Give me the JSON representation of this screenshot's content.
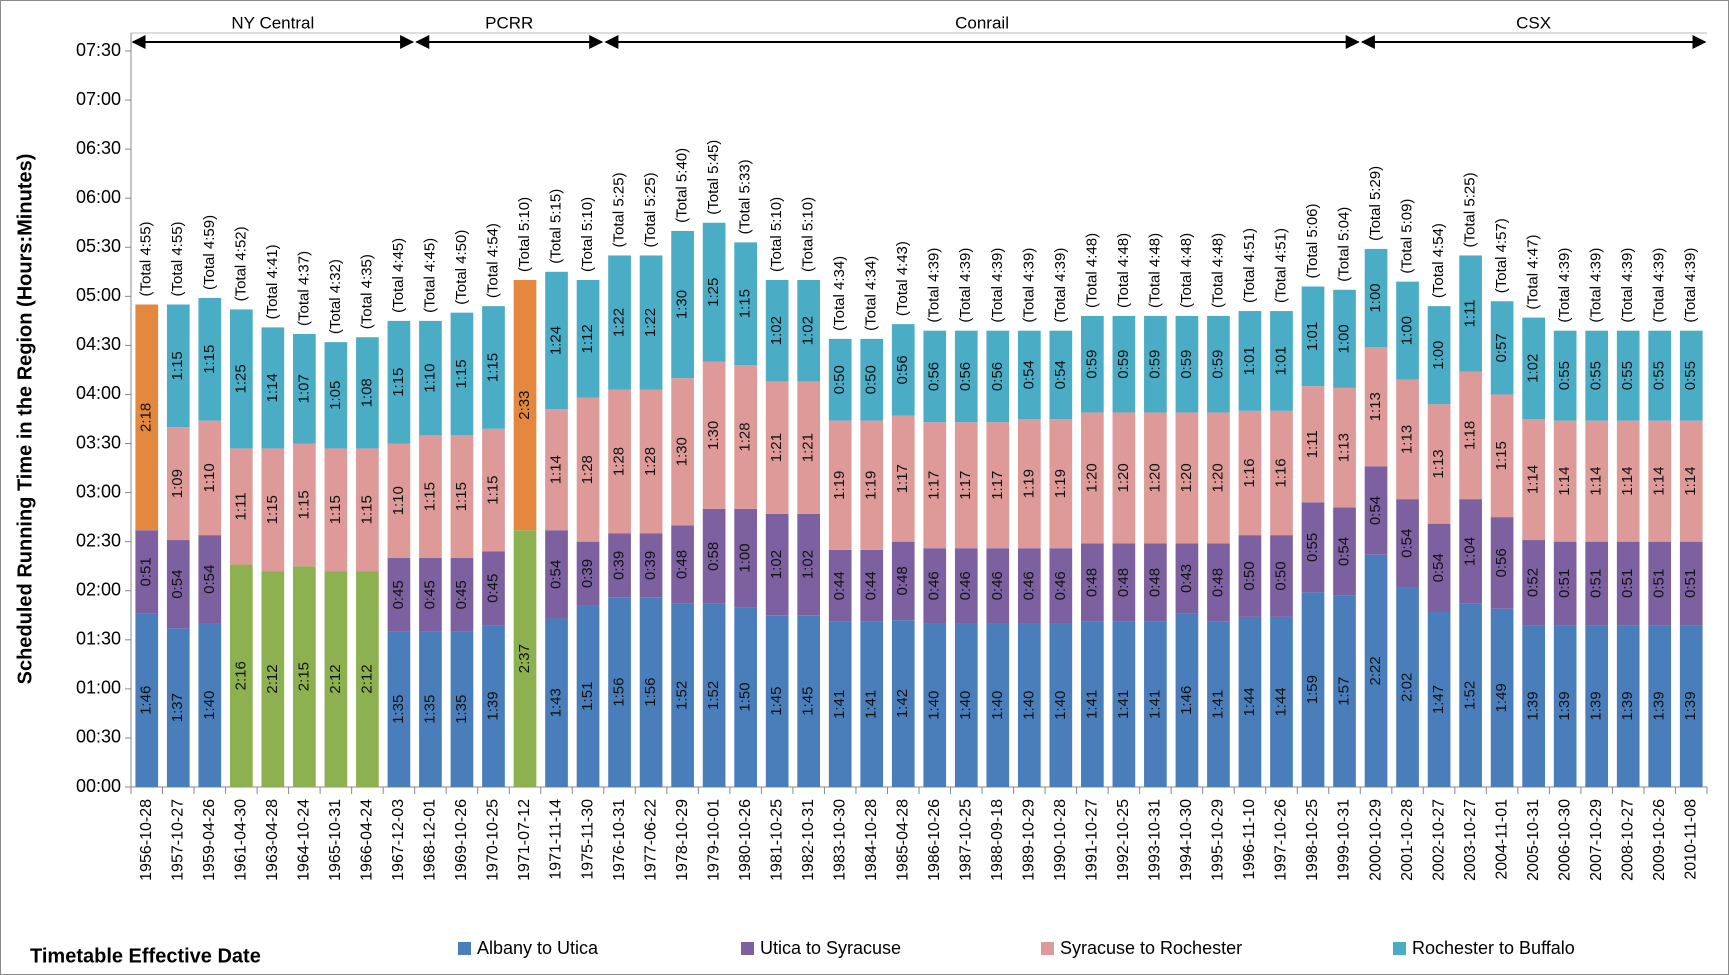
{
  "chart_data": {
    "type": "stacked_bar",
    "y_axis_title": "Scheduled Running Time in the Region (Hours:Minutes)",
    "x_axis_title": "Timetable Effective Date",
    "eras": [
      "NY Central",
      "PCRR",
      "Conrail",
      "CSX"
    ],
    "categories": [
      "1956-10-28",
      "1957-10-27",
      "1959-04-26",
      "1961-04-30",
      "1963-04-28",
      "1964-10-24",
      "1965-10-31",
      "1966-04-24",
      "1967-12-03",
      "1968-12-01",
      "1969-10-26",
      "1970-10-25",
      "1971-07-12",
      "1971-11-14",
      "1975-11-30",
      "1976-10-31",
      "1977-06-22",
      "1978-10-29",
      "1979-10-01",
      "1980-10-26",
      "1981-10-25",
      "1982-10-31",
      "1983-10-30",
      "1984-10-28",
      "1985-04-28",
      "1986-10-26",
      "1987-10-25",
      "1988-09-18",
      "1989-10-29",
      "1990-10-28",
      "1991-10-27",
      "1992-10-25",
      "1993-10-31",
      "1994-10-30",
      "1995-10-29",
      "1996-11-10",
      "1997-10-26",
      "1998-10-25",
      "1999-10-31",
      "2000-10-29",
      "2001-10-28",
      "2002-10-27",
      "2003-10-27",
      "2004-11-01",
      "2005-10-31",
      "2006-10-30",
      "2007-10-29",
      "2008-10-27",
      "2009-10-26",
      "2010-11-08"
    ],
    "series": [
      {
        "name": "Albany to Utica",
        "color": "#4a7ebb",
        "values": [
          106,
          97,
          100,
          null,
          null,
          null,
          null,
          null,
          95,
          95,
          95,
          99,
          null,
          103,
          111,
          116,
          116,
          112,
          112,
          110,
          105,
          105,
          101,
          101,
          102,
          100,
          100,
          100,
          100,
          100,
          101,
          101,
          101,
          106,
          101,
          104,
          104,
          119,
          117,
          142,
          122,
          107,
          112,
          109,
          99,
          99,
          99,
          99,
          99,
          99
        ],
        "value_labels": [
          "1:46",
          "1:37",
          "1:40",
          null,
          null,
          null,
          null,
          null,
          "1:35",
          "1:35",
          "1:35",
          "1:39",
          null,
          "1:43",
          "1:51",
          "1:56",
          "1:56",
          "1:52",
          "1:52",
          "1:50",
          "1:45",
          "1:45",
          "1:41",
          "1:41",
          "1:42",
          "1:40",
          "1:40",
          "1:40",
          "1:40",
          "1:40",
          "1:41",
          "1:41",
          "1:41",
          "1:46",
          "1:41",
          "1:44",
          "1:44",
          "1:59",
          "1:57",
          "2:22",
          "2:02",
          "1:47",
          "1:52",
          "1:49",
          "1:39",
          "1:39",
          "1:39",
          "1:39",
          "1:39",
          "1:39"
        ]
      },
      {
        "color": "#8db050",
        "values": [
          null,
          null,
          null,
          136,
          132,
          135,
          132,
          132,
          null,
          null,
          null,
          null,
          157,
          null,
          null,
          null,
          null,
          null,
          null,
          null,
          null,
          null,
          null,
          null,
          null,
          null,
          null,
          null,
          null,
          null,
          null,
          null,
          null,
          null,
          null,
          null,
          null,
          null,
          null,
          null,
          null,
          null,
          null,
          null,
          null,
          null,
          null,
          null,
          null,
          null
        ],
        "value_labels": [
          null,
          null,
          null,
          "2:16",
          "2:12",
          "2:15",
          "2:12",
          "2:12",
          null,
          null,
          null,
          null,
          "2:37",
          null,
          null,
          null,
          null,
          null,
          null,
          null,
          null,
          null,
          null,
          null,
          null,
          null,
          null,
          null,
          null,
          null,
          null,
          null,
          null,
          null,
          null,
          null,
          null,
          null,
          null,
          null,
          null,
          null,
          null,
          null,
          null,
          null,
          null,
          null,
          null,
          null
        ]
      },
      {
        "name": "Utica to Syracuse",
        "color": "#7d60a0",
        "values": [
          51,
          54,
          54,
          null,
          null,
          null,
          null,
          null,
          45,
          45,
          45,
          45,
          null,
          54,
          39,
          39,
          39,
          48,
          58,
          60,
          62,
          62,
          44,
          44,
          48,
          46,
          46,
          46,
          46,
          46,
          48,
          48,
          48,
          43,
          48,
          50,
          50,
          55,
          54,
          54,
          54,
          54,
          64,
          56,
          52,
          51,
          51,
          51,
          51,
          51
        ],
        "value_labels": [
          "0:51",
          "0:54",
          "0:54",
          null,
          null,
          null,
          null,
          null,
          "0:45",
          "0:45",
          "0:45",
          "0:45",
          null,
          "0:54",
          "0:39",
          "0:39",
          "0:39",
          "0:48",
          "0:58",
          "1:00",
          "1:02",
          "1:02",
          "0:44",
          "0:44",
          "0:48",
          "0:46",
          "0:46",
          "0:46",
          "0:46",
          "0:46",
          "0:48",
          "0:48",
          "0:48",
          "0:43",
          "0:48",
          "0:50",
          "0:50",
          "0:55",
          "0:54",
          "0:54",
          "0:54",
          "0:54",
          "1:04",
          "0:56",
          "0:52",
          "0:51",
          "0:51",
          "0:51",
          "0:51",
          "0:51"
        ]
      },
      {
        "name": "Syracuse to Rochester",
        "color": "#dd9a98",
        "values": [
          null,
          69,
          70,
          71,
          75,
          75,
          75,
          75,
          70,
          75,
          75,
          75,
          null,
          74,
          88,
          88,
          88,
          90,
          90,
          88,
          81,
          81,
          79,
          79,
          77,
          77,
          77,
          77,
          79,
          79,
          80,
          80,
          80,
          80,
          80,
          76,
          76,
          71,
          73,
          73,
          73,
          73,
          78,
          75,
          74,
          74,
          74,
          74,
          74,
          74
        ],
        "value_labels": [
          null,
          "1:09",
          "1:10",
          "1:11",
          "1:15",
          "1:15",
          "1:15",
          "1:15",
          "1:10",
          "1:15",
          "1:15",
          "1:15",
          null,
          "1:14",
          "1:28",
          "1:28",
          "1:28",
          "1:30",
          "1:30",
          "1:28",
          "1:21",
          "1:21",
          "1:19",
          "1:19",
          "1:17",
          "1:17",
          "1:17",
          "1:17",
          "1:19",
          "1:19",
          "1:20",
          "1:20",
          "1:20",
          "1:20",
          "1:20",
          "1:16",
          "1:16",
          "1:11",
          "1:13",
          "1:13",
          "1:13",
          "1:13",
          "1:18",
          "1:15",
          "1:14",
          "1:14",
          "1:14",
          "1:14",
          "1:14",
          "1:14"
        ]
      },
      {
        "color": "#e3883e",
        "values": [
          138,
          null,
          null,
          null,
          null,
          null,
          null,
          null,
          null,
          null,
          null,
          null,
          153,
          null,
          null,
          null,
          null,
          null,
          null,
          null,
          null,
          null,
          null,
          null,
          null,
          null,
          null,
          null,
          null,
          null,
          null,
          null,
          null,
          null,
          null,
          null,
          null,
          null,
          null,
          null,
          null,
          null,
          null,
          null,
          null,
          null,
          null,
          null,
          null,
          null
        ],
        "value_labels": [
          "2:18",
          null,
          null,
          null,
          null,
          null,
          null,
          null,
          null,
          null,
          null,
          null,
          "2:33",
          null,
          null,
          null,
          null,
          null,
          null,
          null,
          null,
          null,
          null,
          null,
          null,
          null,
          null,
          null,
          null,
          null,
          null,
          null,
          null,
          null,
          null,
          null,
          null,
          null,
          null,
          null,
          null,
          null,
          null,
          null,
          null,
          null,
          null,
          null,
          null,
          null
        ]
      },
      {
        "name": "Rochester to Buffalo",
        "color": "#4bacc6",
        "values": [
          null,
          75,
          75,
          85,
          74,
          67,
          65,
          68,
          75,
          70,
          75,
          75,
          null,
          84,
          72,
          82,
          82,
          90,
          85,
          75,
          62,
          62,
          50,
          50,
          56,
          56,
          56,
          56,
          54,
          54,
          59,
          59,
          59,
          59,
          59,
          61,
          61,
          61,
          60,
          60,
          60,
          60,
          71,
          57,
          62,
          55,
          55,
          55,
          55,
          55
        ],
        "value_labels": [
          null,
          "1:15",
          "1:15",
          "1:25",
          "1:14",
          "1:07",
          "1:05",
          "1:08",
          "1:15",
          "1:10",
          "1:15",
          "1:15",
          null,
          "1:24",
          "1:12",
          "1:22",
          "1:22",
          "1:30",
          "1:25",
          "1:15",
          "1:02",
          "1:02",
          "0:50",
          "0:50",
          "0:56",
          "0:56",
          "0:56",
          "0:56",
          "0:54",
          "0:54",
          "0:59",
          "0:59",
          "0:59",
          "0:59",
          "0:59",
          "1:01",
          "1:01",
          "1:01",
          "1:00",
          "1:00",
          "1:00",
          "1:00",
          "1:11",
          "0:57",
          "1:02",
          "0:55",
          "0:55",
          "0:55",
          "0:55",
          "0:55"
        ]
      }
    ],
    "total_labels": [
      "(Total 4:55)",
      "(Total 4:55)",
      "(Total 4:59)",
      "(Total 4:52)",
      "(Total 4:41)",
      "(Total 4:37)",
      "(Total 4:32)",
      "(Total 4:35)",
      "(Total 4:45)",
      "(Total 4:45)",
      "(Total 4:50)",
      "(Total 4:54)",
      "(Total 5:10)",
      "(Total 5:15)",
      "(Total 5:10)",
      "(Total 5:25)",
      "(Total 5:25)",
      "(Total 5:40)",
      "(Total 5:45)",
      "(Total 5:33)",
      "(Total 5:10)",
      "(Total 5:10)",
      "(Total 4:34)",
      "(Total 4:34)",
      "(Total 4:43)",
      "(Total 4:39)",
      "(Total 4:39)",
      "(Total 4:39)",
      "(Total 4:39)",
      "(Total 4:39)",
      "(Total 4:48)",
      "(Total 4:48)",
      "(Total 4:48)",
      "(Total 4:48)",
      "(Total 4:48)",
      "(Total 4:51)",
      "(Total 4:51)",
      "(Total 5:06)",
      "(Total 5:04)",
      "(Total 5:29)",
      "(Total 5:09)",
      "(Total 4:54)",
      "(Total 5:25)",
      "(Total 4:57)",
      "(Total 4:47)",
      "(Total 4:39)",
      "(Total 4:39)",
      "(Total 4:39)",
      "(Total 4:39)",
      "(Total 4:39)"
    ],
    "ylim": [
      0,
      450
    ],
    "yticks": [
      {
        "value": 0,
        "label": "00:00"
      },
      {
        "value": 30,
        "label": "00:30"
      },
      {
        "value": 60,
        "label": "01:00"
      },
      {
        "value": 90,
        "label": "01:30"
      },
      {
        "value": 120,
        "label": "02:00"
      },
      {
        "value": 150,
        "label": "02:30"
      },
      {
        "value": 180,
        "label": "03:00"
      },
      {
        "value": 210,
        "label": "03:30"
      },
      {
        "value": 240,
        "label": "04:00"
      },
      {
        "value": 270,
        "label": "04:30"
      },
      {
        "value": 300,
        "label": "05:00"
      },
      {
        "value": 330,
        "label": "05:30"
      },
      {
        "value": 360,
        "label": "06:00"
      },
      {
        "value": 390,
        "label": "06:30"
      },
      {
        "value": 420,
        "label": "07:00"
      },
      {
        "value": 450,
        "label": "07:30"
      }
    ],
    "grid": false
  }
}
